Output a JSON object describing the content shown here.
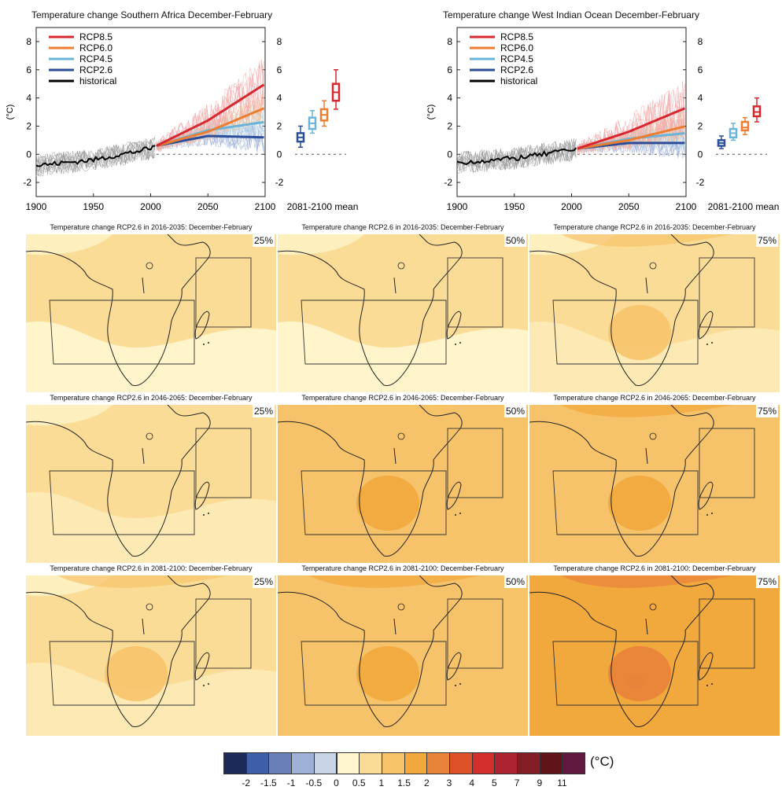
{
  "timeseries": [
    {
      "title": "Temperature change Southern Africa December-February",
      "end_means": [
        1.2,
        2.2,
        2.8,
        4.4
      ]
    },
    {
      "title": "Temperature change West Indian Ocean December-February",
      "end_means": [
        0.8,
        1.5,
        1.9,
        3.0
      ]
    }
  ],
  "legend": [
    {
      "name": "RCP8.5",
      "color": "#d7282f"
    },
    {
      "name": "RCP6.0",
      "color": "#ed7d31"
    },
    {
      "name": "RCP4.5",
      "color": "#6bb4d9"
    },
    {
      "name": "RCP2.6",
      "color": "#2b4e9a"
    },
    {
      "name": "historical",
      "color": "#000000"
    }
  ],
  "xticks": [
    "1900",
    "1950",
    "2000",
    "2050",
    "2100"
  ],
  "yticks": [
    "8",
    "6",
    "4",
    "2",
    "0",
    "-2"
  ],
  "ylabel": "(°C)",
  "mean_label": "2081-2100 mean",
  "chart_data": [
    {
      "type": "line",
      "title": "Temperature change Southern Africa December-February",
      "ylabel": "(°C)",
      "xlim": [
        1900,
        2100
      ],
      "ylim": [
        -3,
        9
      ],
      "series": [
        {
          "name": "historical",
          "x": [
            1900,
            1950,
            2000,
            2005
          ],
          "y": [
            -0.8,
            -0.4,
            0.4,
            0.6
          ]
        },
        {
          "name": "RCP2.6",
          "x": [
            2005,
            2050,
            2100
          ],
          "y": [
            0.6,
            1.3,
            1.2
          ]
        },
        {
          "name": "RCP4.5",
          "x": [
            2005,
            2050,
            2100
          ],
          "y": [
            0.6,
            1.7,
            2.3
          ]
        },
        {
          "name": "RCP6.0",
          "x": [
            2005,
            2050,
            2100
          ],
          "y": [
            0.6,
            1.6,
            3.3
          ]
        },
        {
          "name": "RCP8.5",
          "x": [
            2005,
            2050,
            2100
          ],
          "y": [
            0.6,
            2.4,
            5.0
          ]
        }
      ],
      "end_boxes_2081_2100": [
        {
          "name": "RCP2.6",
          "low": 0.5,
          "q1": 0.9,
          "median": 1.2,
          "q3": 1.5,
          "high": 2.0
        },
        {
          "name": "RCP4.5",
          "low": 1.5,
          "q1": 1.8,
          "median": 2.2,
          "q3": 2.6,
          "high": 3.1
        },
        {
          "name": "RCP6.0",
          "low": 2.0,
          "q1": 2.4,
          "median": 2.8,
          "q3": 3.2,
          "high": 3.8
        },
        {
          "name": "RCP8.5",
          "low": 3.2,
          "q1": 3.8,
          "median": 4.4,
          "q3": 5.0,
          "high": 6.0
        }
      ]
    },
    {
      "type": "line",
      "title": "Temperature change West Indian Ocean December-February",
      "ylabel": "(°C)",
      "xlim": [
        1900,
        2100
      ],
      "ylim": [
        -3,
        9
      ],
      "series": [
        {
          "name": "historical",
          "x": [
            1900,
            1950,
            2000,
            2005
          ],
          "y": [
            -0.6,
            -0.3,
            0.3,
            0.4
          ]
        },
        {
          "name": "RCP2.6",
          "x": [
            2005,
            2050,
            2100
          ],
          "y": [
            0.4,
            0.8,
            0.8
          ]
        },
        {
          "name": "RCP4.5",
          "x": [
            2005,
            2050,
            2100
          ],
          "y": [
            0.4,
            1.1,
            1.5
          ]
        },
        {
          "name": "RCP6.0",
          "x": [
            2005,
            2050,
            2100
          ],
          "y": [
            0.4,
            1.0,
            2.0
          ]
        },
        {
          "name": "RCP8.5",
          "x": [
            2005,
            2050,
            2100
          ],
          "y": [
            0.4,
            1.6,
            3.3
          ]
        }
      ],
      "end_boxes_2081_2100": [
        {
          "name": "RCP2.6",
          "low": 0.4,
          "q1": 0.6,
          "median": 0.8,
          "q3": 1.0,
          "high": 1.3
        },
        {
          "name": "RCP4.5",
          "low": 1.0,
          "q1": 1.2,
          "median": 1.5,
          "q3": 1.8,
          "high": 2.2
        },
        {
          "name": "RCP6.0",
          "low": 1.4,
          "q1": 1.7,
          "median": 1.9,
          "q3": 2.3,
          "high": 2.6
        },
        {
          "name": "RCP8.5",
          "low": 2.3,
          "q1": 2.7,
          "median": 3.0,
          "q3": 3.4,
          "high": 4.0
        }
      ]
    }
  ],
  "maps": [
    {
      "title": "Temperature change RCP2.6 in 2016-2035: December-February",
      "pct": "25%",
      "level": 0.5
    },
    {
      "title": "Temperature change RCP2.6 in 2016-2035: December-February",
      "pct": "50%",
      "level": 0.6
    },
    {
      "title": "Temperature change RCP2.6 in 2016-2035: December-February",
      "pct": "75%",
      "level": 0.8
    },
    {
      "title": "Temperature change RCP2.6 in 2046-2065: December-February",
      "pct": "25%",
      "level": 0.7
    },
    {
      "title": "Temperature change RCP2.6 in 2046-2065: December-February",
      "pct": "50%",
      "level": 1.0
    },
    {
      "title": "Temperature change RCP2.6 in 2046-2065: December-February",
      "pct": "75%",
      "level": 1.4
    },
    {
      "title": "Temperature change RCP2.6 in 2081-2100: December-February",
      "pct": "25%",
      "level": 0.8
    },
    {
      "title": "Temperature change RCP2.6 in 2081-2100: December-February",
      "pct": "50%",
      "level": 1.1
    },
    {
      "title": "Temperature change RCP2.6 in 2081-2100: December-February",
      "pct": "75%",
      "level": 1.6
    }
  ],
  "colorbar": {
    "colors": [
      "#1c2a5a",
      "#3f5ea8",
      "#6a7fb8",
      "#9fb0d6",
      "#c9d3e6",
      "#fff6cf",
      "#fbdc96",
      "#f7c36a",
      "#f1a83c",
      "#e9823a",
      "#de5229",
      "#d22e2b",
      "#ae2330",
      "#821d25",
      "#5e1418",
      "#61183e"
    ],
    "ticks": [
      "-2",
      "-1.5",
      "-1",
      "-0.5",
      "0",
      "0.5",
      "1",
      "1.5",
      "2",
      "3",
      "4",
      "5",
      "7",
      "9",
      "11"
    ],
    "unit": "(°C)"
  }
}
